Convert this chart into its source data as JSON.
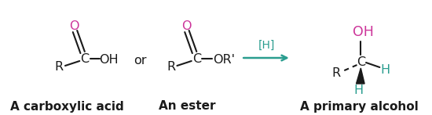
{
  "bg_color": "#ffffff",
  "black": "#1a1a1a",
  "pink": "#cc3399",
  "teal": "#2a9d8f",
  "label1": "A carboxylic acid",
  "label2": "An ester",
  "label3": "A primary alcohol",
  "arrow_label": "[H]",
  "fig_width": 5.5,
  "fig_height": 1.47,
  "dpi": 100
}
